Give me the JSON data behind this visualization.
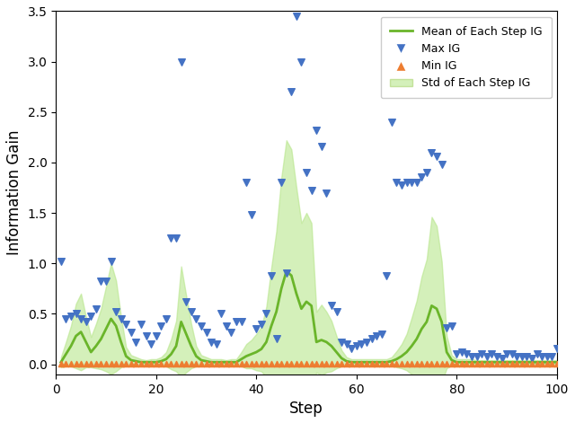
{
  "title": "",
  "xlabel": "Step",
  "ylabel": "Information Gain",
  "xlim": [
    0,
    100
  ],
  "ylim": [
    -0.1,
    3.5
  ],
  "yticks": [
    0.0,
    0.5,
    1.0,
    1.5,
    2.0,
    2.5,
    3.0,
    3.5
  ],
  "xticks": [
    0,
    20,
    40,
    60,
    80,
    100
  ],
  "mean_color": "#6ab52a",
  "std_color": "#b8e68c",
  "std_alpha": 0.6,
  "max_color": "#4472c4",
  "min_color": "#ed7d31",
  "legend_labels": [
    "Mean of Each Step IG",
    "Max IG",
    "Min IG",
    "Std of Each Step IG"
  ],
  "steps": [
    1,
    2,
    3,
    4,
    5,
    6,
    7,
    8,
    9,
    10,
    11,
    12,
    13,
    14,
    15,
    16,
    17,
    18,
    19,
    20,
    21,
    22,
    23,
    24,
    25,
    26,
    27,
    28,
    29,
    30,
    31,
    32,
    33,
    34,
    35,
    36,
    37,
    38,
    39,
    40,
    41,
    42,
    43,
    44,
    45,
    46,
    47,
    48,
    49,
    50,
    51,
    52,
    53,
    54,
    55,
    56,
    57,
    58,
    59,
    60,
    61,
    62,
    63,
    64,
    65,
    66,
    67,
    68,
    69,
    70,
    71,
    72,
    73,
    74,
    75,
    76,
    77,
    78,
    79,
    80,
    81,
    82,
    83,
    84,
    85,
    86,
    87,
    88,
    89,
    90,
    91,
    92,
    93,
    94,
    95,
    96,
    97,
    98,
    99,
    100
  ],
  "mean": [
    0.02,
    0.1,
    0.18,
    0.28,
    0.32,
    0.22,
    0.12,
    0.18,
    0.25,
    0.35,
    0.45,
    0.38,
    0.22,
    0.08,
    0.04,
    0.03,
    0.02,
    0.02,
    0.02,
    0.02,
    0.03,
    0.05,
    0.1,
    0.18,
    0.42,
    0.3,
    0.18,
    0.08,
    0.04,
    0.03,
    0.02,
    0.02,
    0.02,
    0.02,
    0.02,
    0.02,
    0.05,
    0.08,
    0.1,
    0.12,
    0.15,
    0.22,
    0.38,
    0.52,
    0.75,
    0.92,
    0.88,
    0.7,
    0.55,
    0.62,
    0.58,
    0.22,
    0.24,
    0.22,
    0.18,
    0.12,
    0.06,
    0.03,
    0.02,
    0.02,
    0.02,
    0.02,
    0.02,
    0.02,
    0.02,
    0.02,
    0.03,
    0.05,
    0.08,
    0.12,
    0.18,
    0.25,
    0.35,
    0.42,
    0.58,
    0.55,
    0.42,
    0.12,
    0.04,
    0.02,
    0.02,
    0.02,
    0.02,
    0.02,
    0.02,
    0.02,
    0.02,
    0.02,
    0.02,
    0.02,
    0.02,
    0.02,
    0.02,
    0.02,
    0.02,
    0.02,
    0.02,
    0.02,
    0.02,
    0.02
  ],
  "std": [
    0.05,
    0.12,
    0.2,
    0.32,
    0.38,
    0.25,
    0.15,
    0.22,
    0.3,
    0.42,
    0.55,
    0.45,
    0.25,
    0.09,
    0.05,
    0.04,
    0.03,
    0.02,
    0.03,
    0.03,
    0.04,
    0.07,
    0.15,
    0.25,
    0.55,
    0.38,
    0.22,
    0.1,
    0.05,
    0.04,
    0.03,
    0.03,
    0.03,
    0.02,
    0.03,
    0.03,
    0.07,
    0.12,
    0.14,
    0.18,
    0.22,
    0.35,
    0.58,
    0.8,
    1.1,
    1.3,
    1.25,
    1.05,
    0.85,
    0.88,
    0.82,
    0.3,
    0.35,
    0.3,
    0.25,
    0.16,
    0.08,
    0.04,
    0.03,
    0.03,
    0.03,
    0.03,
    0.03,
    0.03,
    0.03,
    0.03,
    0.04,
    0.08,
    0.12,
    0.18,
    0.28,
    0.38,
    0.52,
    0.62,
    0.88,
    0.82,
    0.6,
    0.16,
    0.05,
    0.03,
    0.03,
    0.03,
    0.03,
    0.02,
    0.02,
    0.02,
    0.02,
    0.02,
    0.02,
    0.02,
    0.02,
    0.02,
    0.02,
    0.02,
    0.02,
    0.02,
    0.02,
    0.02,
    0.02,
    0.02
  ],
  "max_ig": [
    1.02,
    0.45,
    0.48,
    0.5,
    0.45,
    0.42,
    0.48,
    0.55,
    0.82,
    0.82,
    1.02,
    0.52,
    0.45,
    0.4,
    0.32,
    0.22,
    0.4,
    0.28,
    0.2,
    0.28,
    0.38,
    0.45,
    1.25,
    1.25,
    3.0,
    0.62,
    0.52,
    0.45,
    0.38,
    0.32,
    0.22,
    0.2,
    0.5,
    0.38,
    0.32,
    0.42,
    0.42,
    1.8,
    1.48,
    0.35,
    0.4,
    0.5,
    0.88,
    0.25,
    1.8,
    0.9,
    2.7,
    3.45,
    3.0,
    1.9,
    1.72,
    2.32,
    2.16,
    1.7,
    0.58,
    0.52,
    0.22,
    0.2,
    0.16,
    0.18,
    0.2,
    0.22,
    0.25,
    0.28,
    0.3,
    0.88,
    2.4,
    1.8,
    1.78,
    1.8,
    1.8,
    1.8,
    1.86,
    1.9,
    2.1,
    2.06,
    1.98,
    0.36,
    0.38,
    0.1,
    0.12,
    0.1,
    0.08,
    0.08,
    0.1,
    0.08,
    0.1,
    0.08,
    0.06,
    0.1,
    0.1,
    0.08,
    0.08,
    0.08,
    0.06,
    0.1,
    0.08,
    0.08,
    0.08,
    0.16
  ],
  "min_ig": [
    0.001,
    0.001,
    0.001,
    0.001,
    0.001,
    0.001,
    0.001,
    0.001,
    0.001,
    0.001,
    0.001,
    0.001,
    0.001,
    0.001,
    0.001,
    0.001,
    0.001,
    0.001,
    0.001,
    0.001,
    0.001,
    0.001,
    0.001,
    0.001,
    0.001,
    0.001,
    0.001,
    0.001,
    0.001,
    0.001,
    0.001,
    0.001,
    0.001,
    0.001,
    0.001,
    0.001,
    0.001,
    0.001,
    0.001,
    0.001,
    0.001,
    0.001,
    0.001,
    0.001,
    0.001,
    0.001,
    0.001,
    0.001,
    0.001,
    0.001,
    0.001,
    0.001,
    0.001,
    0.001,
    0.001,
    0.001,
    0.001,
    0.001,
    0.001,
    0.001,
    0.001,
    0.001,
    0.001,
    0.001,
    0.001,
    0.001,
    0.001,
    0.001,
    0.001,
    0.001,
    0.001,
    0.001,
    0.001,
    0.001,
    0.001,
    0.001,
    0.001,
    0.001,
    0.001,
    0.001,
    0.001,
    0.001,
    0.001,
    0.001,
    0.001,
    0.001,
    0.001,
    0.001,
    0.001,
    0.001,
    0.001,
    0.001,
    0.001,
    0.001,
    0.001,
    0.001,
    0.001,
    0.001,
    0.001,
    0.001
  ]
}
